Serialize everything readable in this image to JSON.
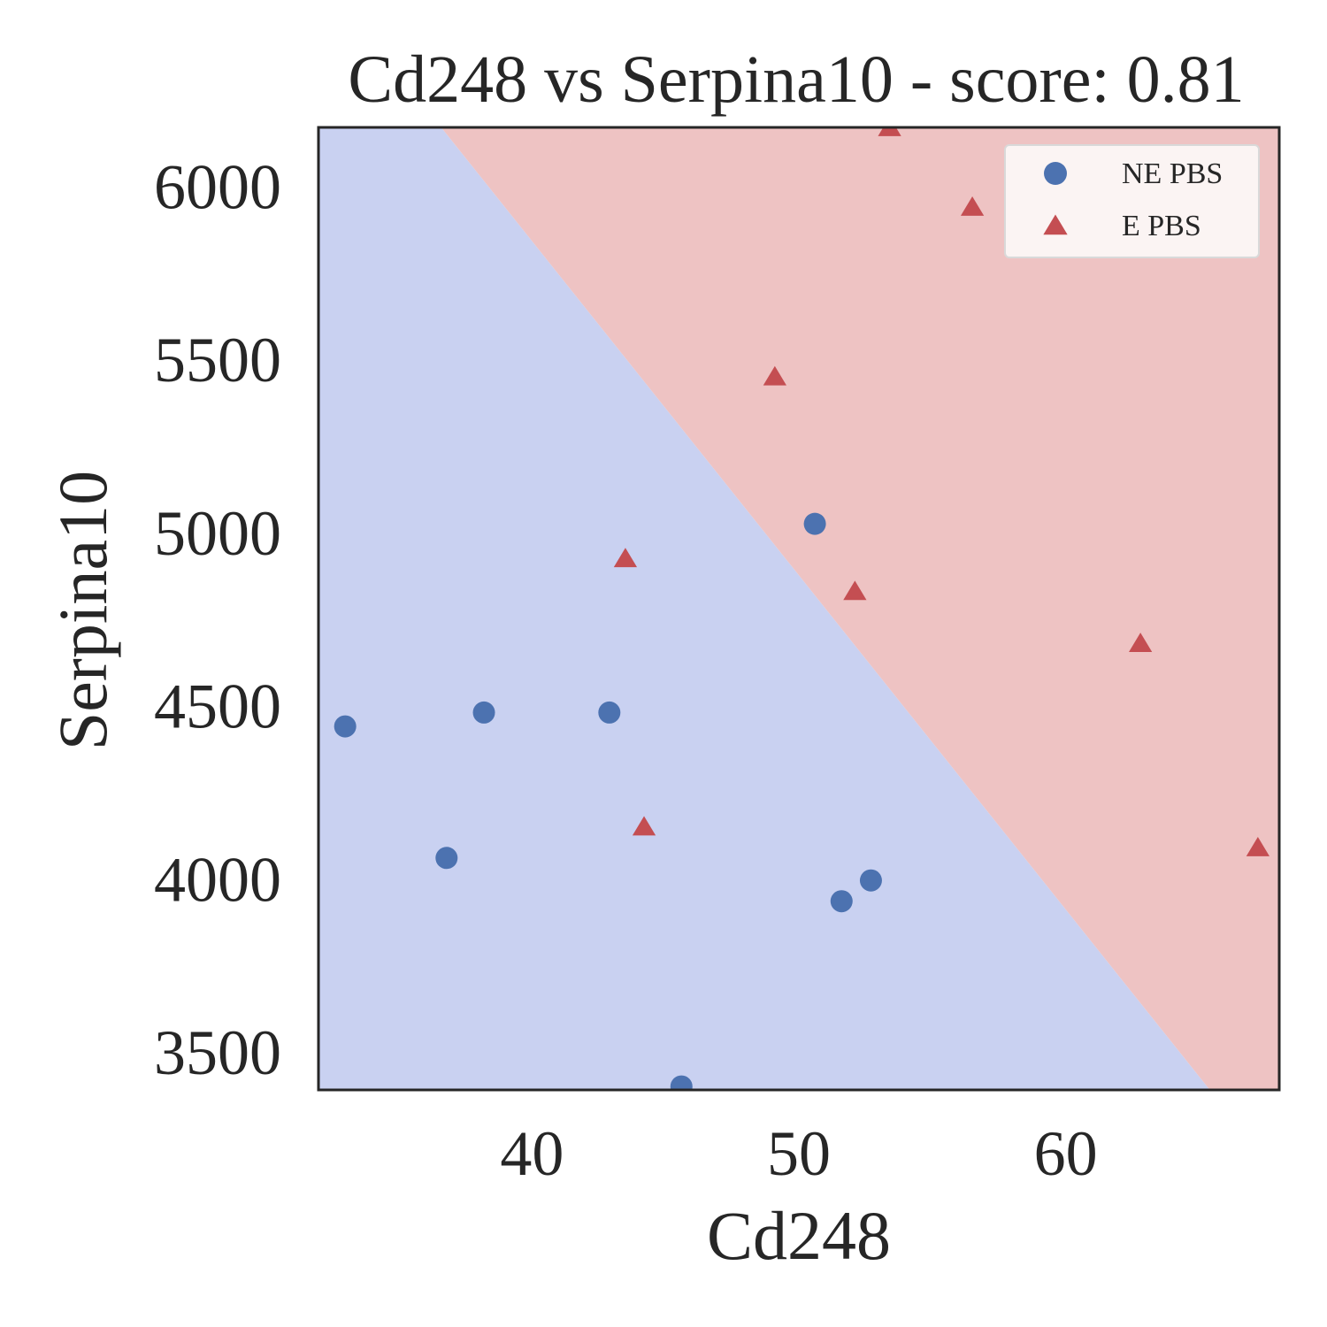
{
  "chart_data": {
    "type": "scatter",
    "title": "Cd248 vs Serpina10 - score: 0.81",
    "xlabel": "Cd248",
    "ylabel": "Serpina10",
    "xlim": [
      32,
      68
    ],
    "ylim": [
      3390,
      6170
    ],
    "xticks": [
      40,
      50,
      60
    ],
    "yticks": [
      3500,
      4000,
      4500,
      5000,
      5500,
      6000
    ],
    "grid": false,
    "legend_position": "top-right",
    "decision_boundary": {
      "line": [
        [
          36.6,
          6170
        ],
        [
          65.4,
          3390
        ]
      ],
      "lower_left_region_color": "#c9d1f1",
      "upper_right_region_color": "#eec3c3"
    },
    "series": [
      {
        "name": "NE PBS",
        "marker": "circle",
        "color": "#4c72b0",
        "points": [
          [
            33.0,
            4440
          ],
          [
            36.8,
            4060
          ],
          [
            38.2,
            4480
          ],
          [
            42.9,
            4480
          ],
          [
            50.6,
            5025
          ],
          [
            51.6,
            3935
          ],
          [
            52.7,
            3995
          ],
          [
            45.6,
            3400
          ]
        ]
      },
      {
        "name": "E PBS",
        "marker": "triangle",
        "color": "#c44e52",
        "points": [
          [
            43.5,
            4925
          ],
          [
            44.2,
            4150
          ],
          [
            49.1,
            5450
          ],
          [
            52.1,
            4830
          ],
          [
            53.4,
            6170
          ],
          [
            56.5,
            5940
          ],
          [
            62.8,
            4680
          ],
          [
            67.2,
            4090
          ]
        ]
      }
    ]
  }
}
